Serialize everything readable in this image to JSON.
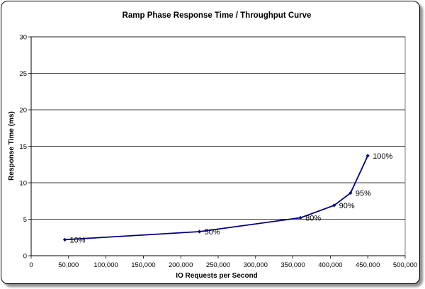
{
  "chart_data": {
    "type": "line",
    "title": "Ramp Phase Response Time / Throughput Curve",
    "xlabel": "IO Requests per Second",
    "ylabel": "Response Time (ms)",
    "xlim": [
      0,
      500000
    ],
    "ylim": [
      0,
      30
    ],
    "xticks": [
      0,
      50000,
      100000,
      150000,
      200000,
      250000,
      300000,
      350000,
      400000,
      450000,
      500000
    ],
    "xtick_labels": [
      "0",
      "50,000",
      "100,000",
      "150,000",
      "200,000",
      "250,000",
      "300,000",
      "350,000",
      "400,000",
      "450,000",
      "500,000"
    ],
    "yticks": [
      0,
      5,
      10,
      15,
      20,
      25,
      30
    ],
    "ytick_labels": [
      "0",
      "5",
      "10",
      "15",
      "20",
      "25",
      "30"
    ],
    "grid": "horizontal",
    "legend": "none",
    "series": [
      {
        "x": [
          45000,
          225000,
          360000,
          405000,
          427000,
          450000
        ],
        "y": [
          2.2,
          3.3,
          5.2,
          6.9,
          8.6,
          13.7
        ],
        "labels": [
          "10%",
          "50%",
          "80%",
          "90%",
          "95%",
          "100%"
        ],
        "color": "#000080"
      }
    ]
  }
}
